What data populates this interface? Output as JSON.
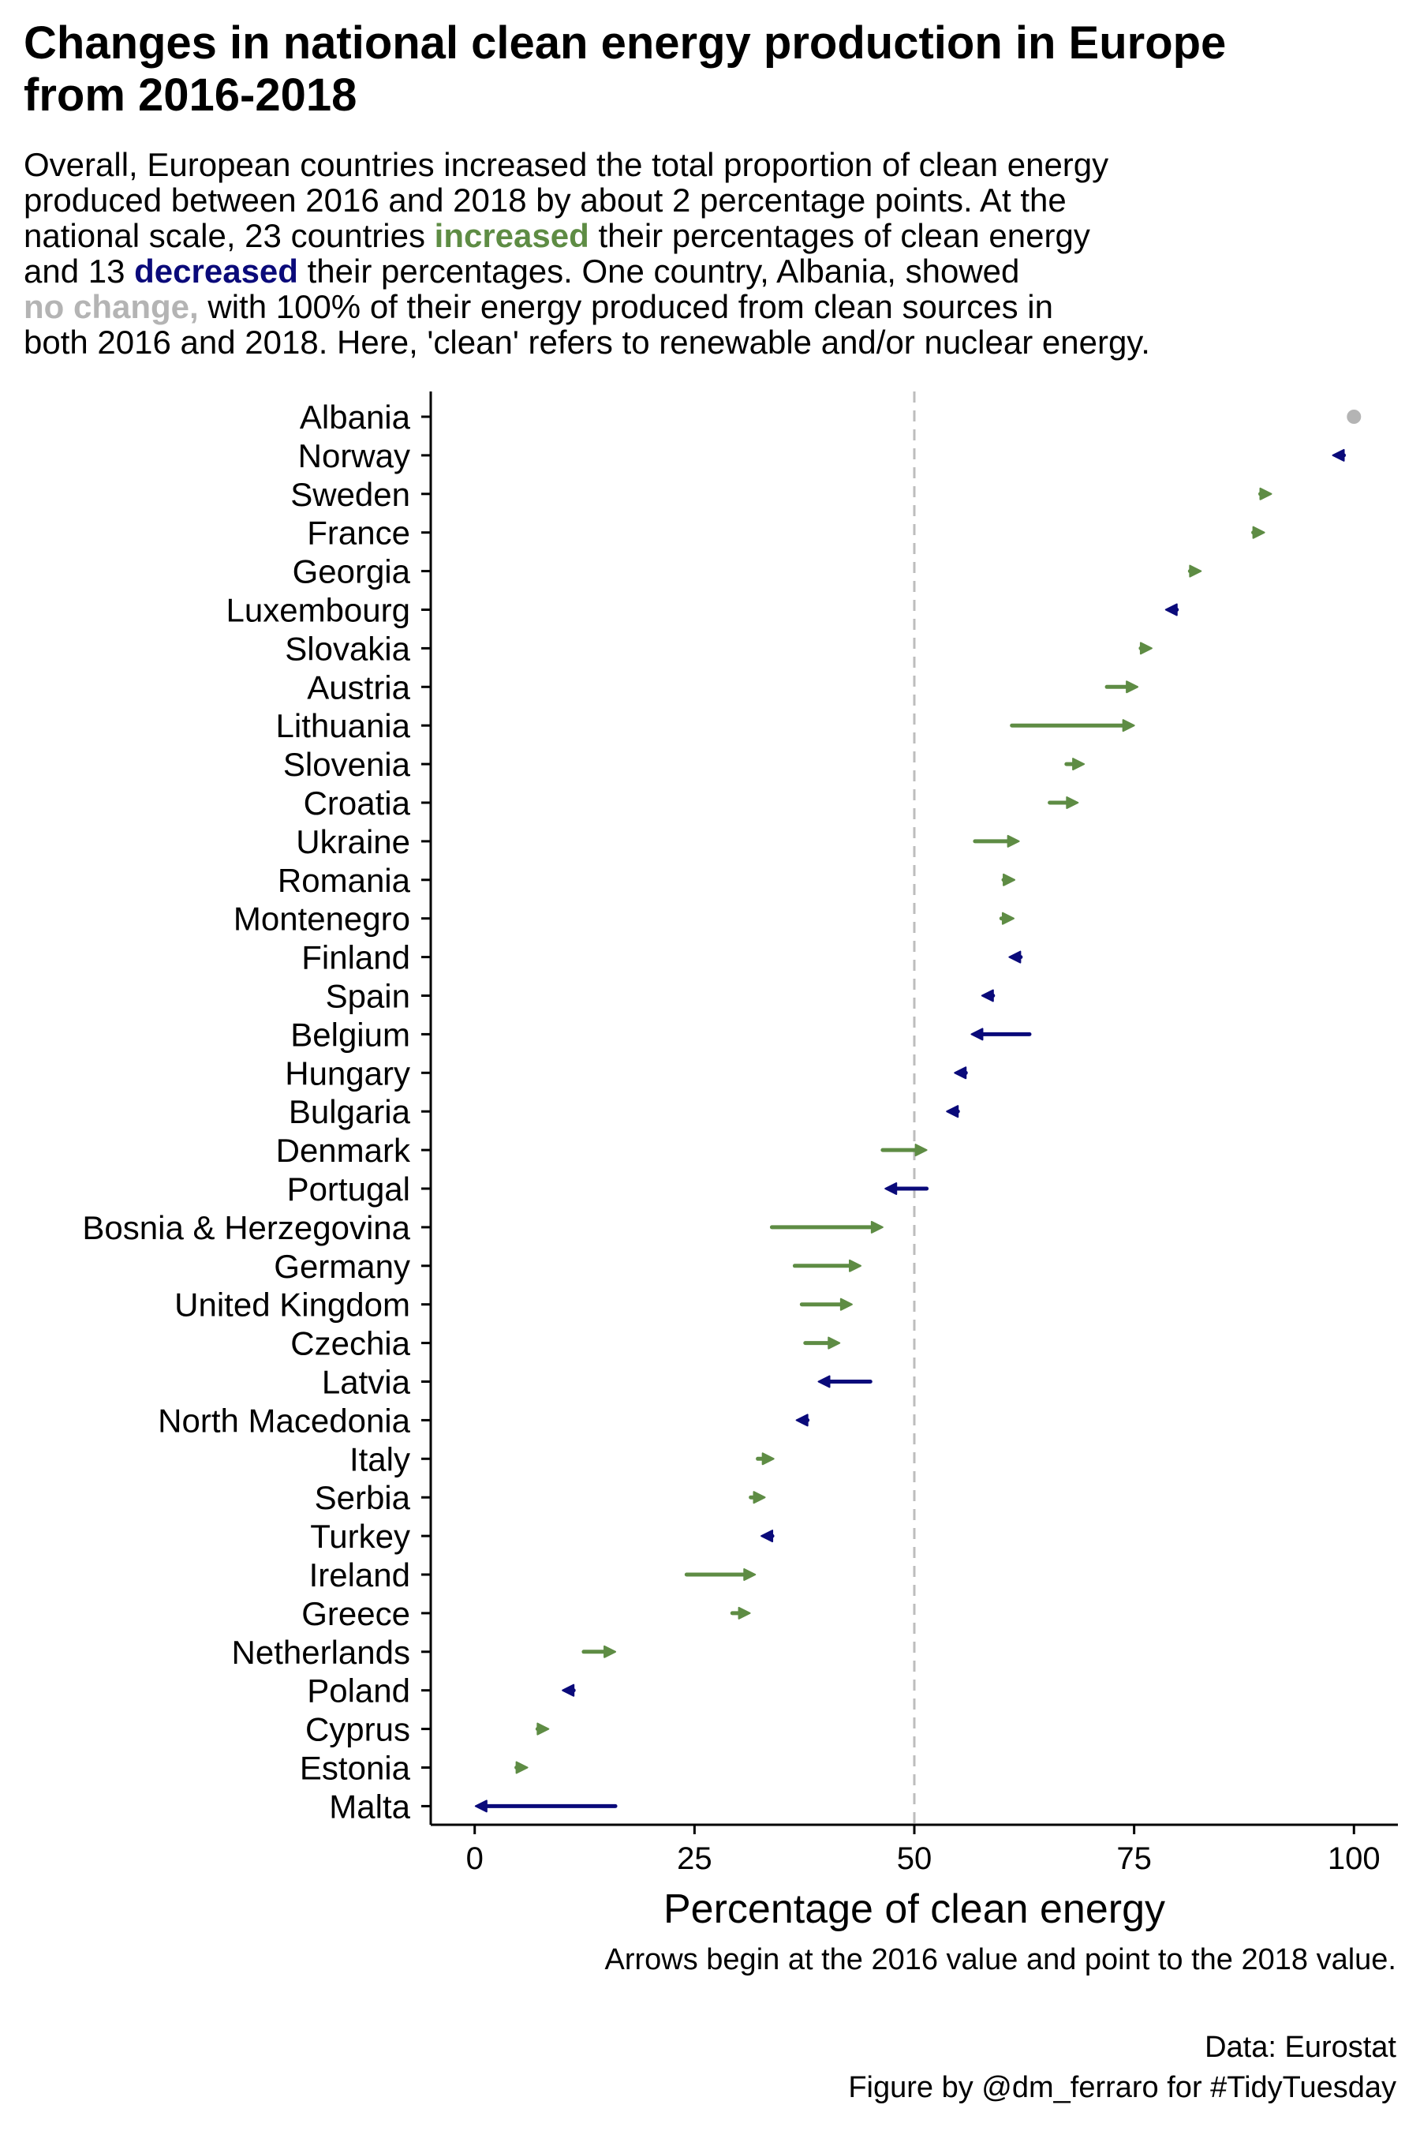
{
  "title_line1": "Changes in national clean energy production in Europe",
  "title_line2": "from 2016-2018",
  "subtitle": {
    "l1": "Overall, European countries increased the total proportion of clean energy",
    "l2": "produced between 2016 and 2018 by about 2 percentage points. At the",
    "l3a": "national scale, 23 countries ",
    "l3b": "increased",
    "l3c": " their percentages of clean energy",
    "l4a": "and 13 ",
    "l4b": "decreased",
    "l4c": " their percentages. One country, Albania, showed",
    "l5a": "no change,",
    "l5b": " with 100% of their energy produced from clean sources in",
    "l6": "both 2016 and 2018. Here, 'clean' refers to renewable and/or nuclear energy."
  },
  "caption": "Arrows begin at the 2016 value and point to the 2018 value.",
  "credit_data": "Data: Eurostat",
  "credit_figure": "Figure by @dm_ferraro for #TidyTuesday",
  "colors": {
    "increased": "#5e8c44",
    "decreased": "#0a0a7a",
    "no_change": "#b4b4b4",
    "reference_line": "#bdbdbd"
  },
  "chart_data": {
    "type": "arrow",
    "xlabel": "Percentage of clean energy",
    "xlim": [
      -5,
      105
    ],
    "xticks": [
      0,
      25,
      50,
      75,
      100
    ],
    "reference_line": 50,
    "grid": false,
    "rows": [
      {
        "country": "Albania",
        "from": 100,
        "to": 100,
        "direction": "no_change"
      },
      {
        "country": "Norway",
        "from": 98.2,
        "to": 97.6,
        "direction": "decreased"
      },
      {
        "country": "Sweden",
        "from": 89.6,
        "to": 90.6,
        "direction": "increased"
      },
      {
        "country": "France",
        "from": 88.6,
        "to": 89.8,
        "direction": "increased"
      },
      {
        "country": "Georgia",
        "from": 81.4,
        "to": 82.6,
        "direction": "increased"
      },
      {
        "country": "Luxembourg",
        "from": 79.4,
        "to": 78.6,
        "direction": "decreased"
      },
      {
        "country": "Slovakia",
        "from": 75.9,
        "to": 77.0,
        "direction": "increased"
      },
      {
        "country": "Austria",
        "from": 71.9,
        "to": 75.4,
        "direction": "increased"
      },
      {
        "country": "Lithuania",
        "from": 61.1,
        "to": 75.0,
        "direction": "increased"
      },
      {
        "country": "Slovenia",
        "from": 67.3,
        "to": 69.3,
        "direction": "increased"
      },
      {
        "country": "Croatia",
        "from": 65.4,
        "to": 68.6,
        "direction": "increased"
      },
      {
        "country": "Ukraine",
        "from": 56.9,
        "to": 61.9,
        "direction": "increased"
      },
      {
        "country": "Romania",
        "from": 60.8,
        "to": 61.4,
        "direction": "increased"
      },
      {
        "country": "Montenegro",
        "from": 59.9,
        "to": 61.3,
        "direction": "increased"
      },
      {
        "country": "Finland",
        "from": 62.1,
        "to": 60.8,
        "direction": "decreased"
      },
      {
        "country": "Spain",
        "from": 58.6,
        "to": 57.7,
        "direction": "decreased"
      },
      {
        "country": "Belgium",
        "from": 63.1,
        "to": 56.5,
        "direction": "decreased"
      },
      {
        "country": "Hungary",
        "from": 55.3,
        "to": 54.6,
        "direction": "decreased"
      },
      {
        "country": "Bulgaria",
        "from": 54.4,
        "to": 53.7,
        "direction": "decreased"
      },
      {
        "country": "Denmark",
        "from": 46.4,
        "to": 51.4,
        "direction": "increased"
      },
      {
        "country": "Portugal",
        "from": 51.4,
        "to": 46.7,
        "direction": "decreased"
      },
      {
        "country": "Bosnia & Herzegovina",
        "from": 33.8,
        "to": 46.4,
        "direction": "increased"
      },
      {
        "country": "Germany",
        "from": 36.4,
        "to": 43.9,
        "direction": "increased"
      },
      {
        "country": "United Kingdom",
        "from": 37.2,
        "to": 42.9,
        "direction": "increased"
      },
      {
        "country": "Czechia",
        "from": 37.6,
        "to": 41.5,
        "direction": "increased"
      },
      {
        "country": "Latvia",
        "from": 45.0,
        "to": 39.1,
        "direction": "decreased"
      },
      {
        "country": "North Macedonia",
        "from": 37.7,
        "to": 36.6,
        "direction": "decreased"
      },
      {
        "country": "Italy",
        "from": 32.2,
        "to": 34.0,
        "direction": "increased"
      },
      {
        "country": "Serbia",
        "from": 31.4,
        "to": 33.0,
        "direction": "increased"
      },
      {
        "country": "Turkey",
        "from": 33.4,
        "to": 32.6,
        "direction": "decreased"
      },
      {
        "country": "Ireland",
        "from": 24.1,
        "to": 31.9,
        "direction": "increased"
      },
      {
        "country": "Greece",
        "from": 29.3,
        "to": 31.3,
        "direction": "increased"
      },
      {
        "country": "Netherlands",
        "from": 12.4,
        "to": 16.0,
        "direction": "increased"
      },
      {
        "country": "Poland",
        "from": 10.8,
        "to": 10.0,
        "direction": "decreased"
      },
      {
        "country": "Cyprus",
        "from": 7.8,
        "to": 8.4,
        "direction": "increased"
      },
      {
        "country": "Estonia",
        "from": 5.6,
        "to": 6.0,
        "direction": "increased"
      },
      {
        "country": "Malta",
        "from": 16.0,
        "to": 0.1,
        "direction": "decreased"
      }
    ]
  }
}
